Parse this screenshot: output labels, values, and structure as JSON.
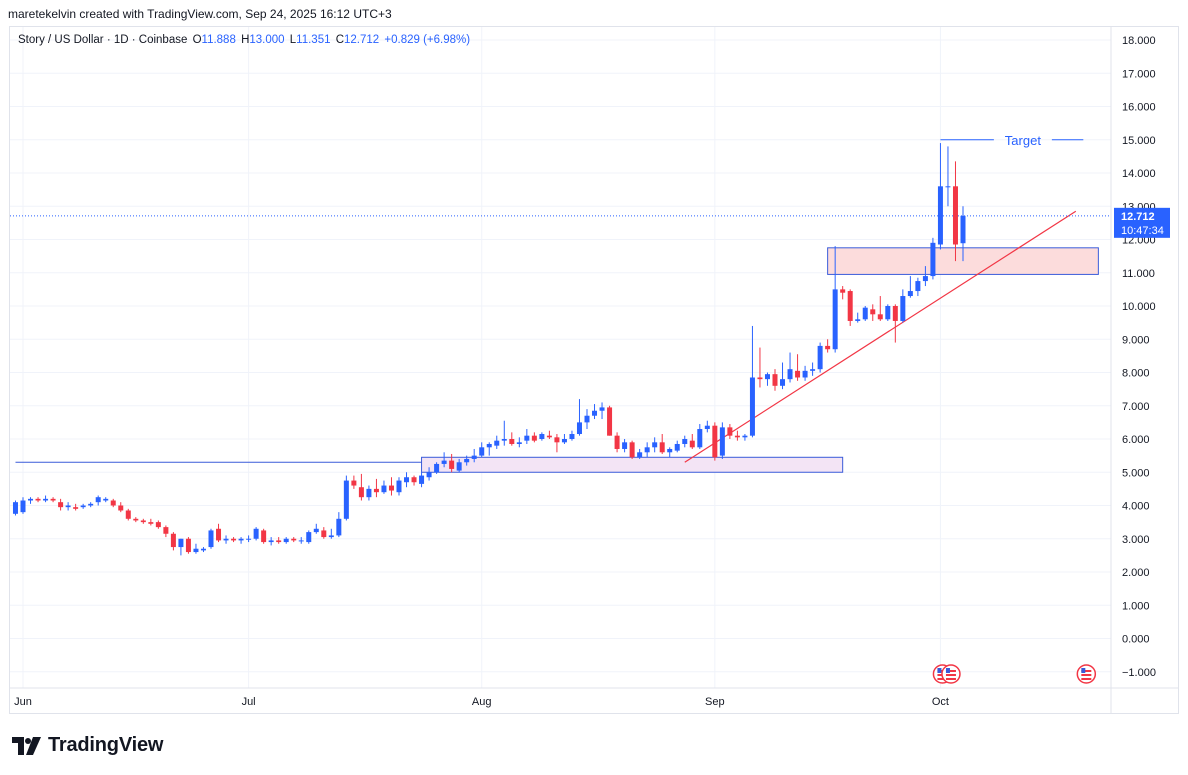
{
  "credit": "maretekelvin created with TradingView.com, Sep 24, 2025 16:12 UTC+3",
  "legend": {
    "symbol": "Story / US Dollar · 1D · Coinbase",
    "o_label": "O",
    "o": "11.888",
    "h_label": "H",
    "h": "13.000",
    "l_label": "L",
    "l": "11.351",
    "c_label": "C",
    "c": "12.712",
    "change": "+0.829 (+6.98%)"
  },
  "price_tag": {
    "price": "12.712",
    "countdown": "10:47:34"
  },
  "brand": "TradingView",
  "colors": {
    "up": "#2962ff",
    "down": "#f23645",
    "zone_fill": "#fcdcdc",
    "zone_border": "#3a5bd9",
    "support_fill": "#f3e4f5",
    "trendline": "#f23645",
    "target": "#2962ff"
  },
  "chart_data": {
    "type": "candlestick",
    "title": "Story / US Dollar · 1D · Coinbase",
    "x_ticks": [
      "Jun",
      "Jul",
      "Aug",
      "Sep",
      "Oct"
    ],
    "x_tick_dates": [
      "2025-06-01",
      "2025-07-01",
      "2025-08-01",
      "2025-09-01",
      "2025-10-01"
    ],
    "x_range": [
      "2025-05-31",
      "2025-10-22"
    ],
    "y_ticks": [
      "18.000",
      "17.000",
      "16.000",
      "15.000",
      "14.000",
      "13.000",
      "12.000",
      "11.000",
      "10.000",
      "9.000",
      "8.000",
      "7.000",
      "6.000",
      "5.000",
      "4.000",
      "3.000",
      "2.000",
      "1.000",
      "0.000",
      "−1.000"
    ],
    "ylim": [
      -1.5,
      18.5
    ],
    "last_price": 12.712,
    "candles": [
      {
        "date": "2025-05-31",
        "o": 3.75,
        "h": 4.15,
        "l": 3.7,
        "c": 4.1
      },
      {
        "date": "2025-06-01",
        "o": 3.8,
        "h": 4.25,
        "l": 3.75,
        "c": 4.15
      },
      {
        "date": "2025-06-02",
        "o": 4.15,
        "h": 4.25,
        "l": 4.05,
        "c": 4.2
      },
      {
        "date": "2025-06-03",
        "o": 4.2,
        "h": 4.25,
        "l": 4.1,
        "c": 4.15
      },
      {
        "date": "2025-06-04",
        "o": 4.15,
        "h": 4.3,
        "l": 4.1,
        "c": 4.2
      },
      {
        "date": "2025-06-05",
        "o": 4.2,
        "h": 4.25,
        "l": 4.1,
        "c": 4.15
      },
      {
        "date": "2025-06-06",
        "o": 4.1,
        "h": 4.2,
        "l": 3.85,
        "c": 3.95
      },
      {
        "date": "2025-06-07",
        "o": 3.95,
        "h": 4.1,
        "l": 3.85,
        "c": 4.0
      },
      {
        "date": "2025-06-08",
        "o": 3.95,
        "h": 4.05,
        "l": 3.85,
        "c": 3.9
      },
      {
        "date": "2025-06-09",
        "o": 3.95,
        "h": 4.05,
        "l": 3.9,
        "c": 4.0
      },
      {
        "date": "2025-06-10",
        "o": 4.0,
        "h": 4.1,
        "l": 3.95,
        "c": 4.05
      },
      {
        "date": "2025-06-11",
        "o": 4.1,
        "h": 4.3,
        "l": 4.0,
        "c": 4.25
      },
      {
        "date": "2025-06-12",
        "o": 4.15,
        "h": 4.25,
        "l": 4.1,
        "c": 4.2
      },
      {
        "date": "2025-06-13",
        "o": 4.15,
        "h": 4.2,
        "l": 3.95,
        "c": 4.0
      },
      {
        "date": "2025-06-14",
        "o": 4.0,
        "h": 4.1,
        "l": 3.8,
        "c": 3.85
      },
      {
        "date": "2025-06-15",
        "o": 3.85,
        "h": 3.9,
        "l": 3.55,
        "c": 3.6
      },
      {
        "date": "2025-06-16",
        "o": 3.6,
        "h": 3.65,
        "l": 3.5,
        "c": 3.55
      },
      {
        "date": "2025-06-17",
        "o": 3.55,
        "h": 3.6,
        "l": 3.45,
        "c": 3.5
      },
      {
        "date": "2025-06-18",
        "o": 3.5,
        "h": 3.6,
        "l": 3.4,
        "c": 3.45
      },
      {
        "date": "2025-06-19",
        "o": 3.5,
        "h": 3.55,
        "l": 3.3,
        "c": 3.35
      },
      {
        "date": "2025-06-20",
        "o": 3.35,
        "h": 3.4,
        "l": 3.05,
        "c": 3.15
      },
      {
        "date": "2025-06-21",
        "o": 3.15,
        "h": 3.2,
        "l": 2.65,
        "c": 2.75
      },
      {
        "date": "2025-06-22",
        "o": 2.75,
        "h": 3.0,
        "l": 2.5,
        "c": 3.0
      },
      {
        "date": "2025-06-23",
        "o": 3.0,
        "h": 3.05,
        "l": 2.55,
        "c": 2.6
      },
      {
        "date": "2025-06-24",
        "o": 2.6,
        "h": 2.85,
        "l": 2.55,
        "c": 2.7
      },
      {
        "date": "2025-06-25",
        "o": 2.65,
        "h": 2.75,
        "l": 2.6,
        "c": 2.7
      },
      {
        "date": "2025-06-26",
        "o": 2.75,
        "h": 3.3,
        "l": 2.7,
        "c": 3.25
      },
      {
        "date": "2025-06-27",
        "o": 3.3,
        "h": 3.45,
        "l": 2.9,
        "c": 2.95
      },
      {
        "date": "2025-06-28",
        "o": 2.95,
        "h": 3.1,
        "l": 2.85,
        "c": 3.0
      },
      {
        "date": "2025-06-29",
        "o": 3.0,
        "h": 3.05,
        "l": 2.9,
        "c": 2.95
      },
      {
        "date": "2025-06-30",
        "o": 2.95,
        "h": 3.05,
        "l": 2.85,
        "c": 3.0
      },
      {
        "date": "2025-07-01",
        "o": 3.0,
        "h": 3.1,
        "l": 2.9,
        "c": 3.0
      },
      {
        "date": "2025-07-02",
        "o": 3.0,
        "h": 3.35,
        "l": 2.95,
        "c": 3.3
      },
      {
        "date": "2025-07-03",
        "o": 3.25,
        "h": 3.3,
        "l": 2.85,
        "c": 2.9
      },
      {
        "date": "2025-07-04",
        "o": 2.9,
        "h": 3.05,
        "l": 2.8,
        "c": 2.95
      },
      {
        "date": "2025-07-05",
        "o": 2.95,
        "h": 3.05,
        "l": 2.85,
        "c": 2.9
      },
      {
        "date": "2025-07-06",
        "o": 2.9,
        "h": 3.05,
        "l": 2.85,
        "c": 3.0
      },
      {
        "date": "2025-07-07",
        "o": 3.0,
        "h": 3.05,
        "l": 2.9,
        "c": 2.95
      },
      {
        "date": "2025-07-08",
        "o": 2.95,
        "h": 3.05,
        "l": 2.85,
        "c": 2.95
      },
      {
        "date": "2025-07-09",
        "o": 2.9,
        "h": 3.25,
        "l": 2.85,
        "c": 3.2
      },
      {
        "date": "2025-07-10",
        "o": 3.2,
        "h": 3.45,
        "l": 3.15,
        "c": 3.3
      },
      {
        "date": "2025-07-11",
        "o": 3.25,
        "h": 3.35,
        "l": 3.0,
        "c": 3.05
      },
      {
        "date": "2025-07-12",
        "o": 3.05,
        "h": 3.3,
        "l": 3.0,
        "c": 3.1
      },
      {
        "date": "2025-07-13",
        "o": 3.1,
        "h": 3.8,
        "l": 3.05,
        "c": 3.6
      },
      {
        "date": "2025-07-14",
        "o": 3.6,
        "h": 4.9,
        "l": 3.55,
        "c": 4.75
      },
      {
        "date": "2025-07-15",
        "o": 4.75,
        "h": 4.9,
        "l": 4.5,
        "c": 4.6
      },
      {
        "date": "2025-07-16",
        "o": 4.55,
        "h": 4.95,
        "l": 4.15,
        "c": 4.25
      },
      {
        "date": "2025-07-17",
        "o": 4.25,
        "h": 4.6,
        "l": 4.15,
        "c": 4.5
      },
      {
        "date": "2025-07-18",
        "o": 4.5,
        "h": 4.8,
        "l": 4.25,
        "c": 4.4
      },
      {
        "date": "2025-07-19",
        "o": 4.4,
        "h": 4.75,
        "l": 4.35,
        "c": 4.6
      },
      {
        "date": "2025-07-20",
        "o": 4.6,
        "h": 4.85,
        "l": 4.3,
        "c": 4.45
      },
      {
        "date": "2025-07-21",
        "o": 4.4,
        "h": 4.85,
        "l": 4.3,
        "c": 4.75
      },
      {
        "date": "2025-07-22",
        "o": 4.7,
        "h": 5.0,
        "l": 4.55,
        "c": 4.85
      },
      {
        "date": "2025-07-23",
        "o": 4.85,
        "h": 4.9,
        "l": 4.6,
        "c": 4.7
      },
      {
        "date": "2025-07-24",
        "o": 4.65,
        "h": 5.0,
        "l": 4.55,
        "c": 4.9
      },
      {
        "date": "2025-07-25",
        "o": 4.85,
        "h": 5.15,
        "l": 4.75,
        "c": 5.0
      },
      {
        "date": "2025-07-26",
        "o": 5.0,
        "h": 5.3,
        "l": 4.95,
        "c": 5.25
      },
      {
        "date": "2025-07-27",
        "o": 5.25,
        "h": 5.6,
        "l": 5.15,
        "c": 5.35
      },
      {
        "date": "2025-07-28",
        "o": 5.35,
        "h": 5.55,
        "l": 5.0,
        "c": 5.1
      },
      {
        "date": "2025-07-29",
        "o": 5.05,
        "h": 5.4,
        "l": 5.0,
        "c": 5.3
      },
      {
        "date": "2025-07-30",
        "o": 5.3,
        "h": 5.5,
        "l": 5.2,
        "c": 5.4
      },
      {
        "date": "2025-07-31",
        "o": 5.4,
        "h": 5.7,
        "l": 5.3,
        "c": 5.5
      },
      {
        "date": "2025-08-01",
        "o": 5.5,
        "h": 5.9,
        "l": 5.45,
        "c": 5.75
      },
      {
        "date": "2025-08-02",
        "o": 5.75,
        "h": 5.9,
        "l": 5.5,
        "c": 5.85
      },
      {
        "date": "2025-08-03",
        "o": 5.8,
        "h": 6.1,
        "l": 5.7,
        "c": 5.95
      },
      {
        "date": "2025-08-04",
        "o": 5.95,
        "h": 6.55,
        "l": 5.8,
        "c": 6.0
      },
      {
        "date": "2025-08-05",
        "o": 6.0,
        "h": 6.2,
        "l": 5.8,
        "c": 5.85
      },
      {
        "date": "2025-08-06",
        "o": 5.85,
        "h": 6.05,
        "l": 5.75,
        "c": 5.9
      },
      {
        "date": "2025-08-07",
        "o": 5.95,
        "h": 6.3,
        "l": 5.85,
        "c": 6.1
      },
      {
        "date": "2025-08-08",
        "o": 6.1,
        "h": 6.2,
        "l": 5.9,
        "c": 5.95
      },
      {
        "date": "2025-08-09",
        "o": 6.0,
        "h": 6.2,
        "l": 5.95,
        "c": 6.15
      },
      {
        "date": "2025-08-10",
        "o": 6.1,
        "h": 6.25,
        "l": 6.0,
        "c": 6.05
      },
      {
        "date": "2025-08-11",
        "o": 6.05,
        "h": 6.15,
        "l": 5.6,
        "c": 5.9
      },
      {
        "date": "2025-08-12",
        "o": 5.9,
        "h": 6.15,
        "l": 5.85,
        "c": 6.0
      },
      {
        "date": "2025-08-13",
        "o": 6.0,
        "h": 6.25,
        "l": 5.95,
        "c": 6.15
      },
      {
        "date": "2025-08-14",
        "o": 6.15,
        "h": 7.2,
        "l": 6.1,
        "c": 6.5
      },
      {
        "date": "2025-08-15",
        "o": 6.5,
        "h": 6.9,
        "l": 6.3,
        "c": 6.7
      },
      {
        "date": "2025-08-16",
        "o": 6.7,
        "h": 7.05,
        "l": 6.6,
        "c": 6.85
      },
      {
        "date": "2025-08-17",
        "o": 6.85,
        "h": 7.1,
        "l": 6.6,
        "c": 6.95
      },
      {
        "date": "2025-08-18",
        "o": 6.95,
        "h": 7.0,
        "l": 6.1,
        "c": 6.1
      },
      {
        "date": "2025-08-19",
        "o": 6.1,
        "h": 6.2,
        "l": 5.6,
        "c": 5.7
      },
      {
        "date": "2025-08-20",
        "o": 5.7,
        "h": 6.0,
        "l": 5.6,
        "c": 5.9
      },
      {
        "date": "2025-08-21",
        "o": 5.9,
        "h": 5.95,
        "l": 5.4,
        "c": 5.45
      },
      {
        "date": "2025-08-22",
        "o": 5.45,
        "h": 5.7,
        "l": 5.4,
        "c": 5.6
      },
      {
        "date": "2025-08-23",
        "o": 5.6,
        "h": 5.9,
        "l": 5.45,
        "c": 5.75
      },
      {
        "date": "2025-08-24",
        "o": 5.75,
        "h": 6.05,
        "l": 5.6,
        "c": 5.9
      },
      {
        "date": "2025-08-25",
        "o": 5.9,
        "h": 6.15,
        "l": 5.55,
        "c": 5.6
      },
      {
        "date": "2025-08-26",
        "o": 5.6,
        "h": 5.75,
        "l": 5.45,
        "c": 5.7
      },
      {
        "date": "2025-08-27",
        "o": 5.65,
        "h": 5.95,
        "l": 5.6,
        "c": 5.85
      },
      {
        "date": "2025-08-28",
        "o": 5.85,
        "h": 6.1,
        "l": 5.75,
        "c": 6.0
      },
      {
        "date": "2025-08-29",
        "o": 5.95,
        "h": 6.15,
        "l": 5.7,
        "c": 5.75
      },
      {
        "date": "2025-08-30",
        "o": 5.75,
        "h": 6.45,
        "l": 5.7,
        "c": 6.3
      },
      {
        "date": "2025-08-31",
        "o": 6.3,
        "h": 6.55,
        "l": 6.2,
        "c": 6.4
      },
      {
        "date": "2025-09-01",
        "o": 6.4,
        "h": 6.5,
        "l": 5.35,
        "c": 5.45
      },
      {
        "date": "2025-09-02",
        "o": 5.5,
        "h": 6.5,
        "l": 5.4,
        "c": 6.35
      },
      {
        "date": "2025-09-03",
        "o": 6.35,
        "h": 6.45,
        "l": 6.0,
        "c": 6.1
      },
      {
        "date": "2025-09-04",
        "o": 6.1,
        "h": 6.25,
        "l": 5.95,
        "c": 6.05
      },
      {
        "date": "2025-09-05",
        "o": 6.05,
        "h": 6.15,
        "l": 5.95,
        "c": 6.1
      },
      {
        "date": "2025-09-06",
        "o": 6.1,
        "h": 9.4,
        "l": 6.05,
        "c": 7.85
      },
      {
        "date": "2025-09-07",
        "o": 7.85,
        "h": 8.75,
        "l": 7.55,
        "c": 7.8
      },
      {
        "date": "2025-09-08",
        "o": 7.8,
        "h": 8.0,
        "l": 7.6,
        "c": 7.95
      },
      {
        "date": "2025-09-09",
        "o": 7.95,
        "h": 8.1,
        "l": 7.45,
        "c": 7.6
      },
      {
        "date": "2025-09-10",
        "o": 7.6,
        "h": 8.3,
        "l": 7.5,
        "c": 7.8
      },
      {
        "date": "2025-09-11",
        "o": 7.8,
        "h": 8.6,
        "l": 7.7,
        "c": 8.1
      },
      {
        "date": "2025-09-12",
        "o": 8.05,
        "h": 8.55,
        "l": 7.75,
        "c": 7.85
      },
      {
        "date": "2025-09-13",
        "o": 7.85,
        "h": 8.2,
        "l": 7.75,
        "c": 8.05
      },
      {
        "date": "2025-09-14",
        "o": 8.05,
        "h": 8.3,
        "l": 7.9,
        "c": 8.1
      },
      {
        "date": "2025-09-15",
        "o": 8.1,
        "h": 8.9,
        "l": 8.0,
        "c": 8.8
      },
      {
        "date": "2025-09-16",
        "o": 8.8,
        "h": 9.0,
        "l": 8.6,
        "c": 8.7
      },
      {
        "date": "2025-09-17",
        "o": 8.7,
        "h": 11.8,
        "l": 8.6,
        "c": 10.5
      },
      {
        "date": "2025-09-18",
        "o": 10.5,
        "h": 10.6,
        "l": 10.2,
        "c": 10.4
      },
      {
        "date": "2025-09-19",
        "o": 10.45,
        "h": 10.5,
        "l": 9.4,
        "c": 9.55
      },
      {
        "date": "2025-09-20",
        "o": 9.55,
        "h": 9.8,
        "l": 9.5,
        "c": 9.6
      },
      {
        "date": "2025-09-21",
        "o": 9.6,
        "h": 10.0,
        "l": 9.55,
        "c": 9.95
      },
      {
        "date": "2025-09-22",
        "o": 9.9,
        "h": 10.05,
        "l": 9.55,
        "c": 9.75
      },
      {
        "date": "2025-09-23",
        "o": 9.75,
        "h": 10.3,
        "l": 9.55,
        "c": 9.6
      },
      {
        "date": "2025-09-24",
        "o": 9.6,
        "h": 10.05,
        "l": 9.55,
        "c": 10.0
      },
      {
        "date": "2025-09-25",
        "o": 10.0,
        "h": 10.05,
        "l": 8.9,
        "c": 9.55
      },
      {
        "date": "2025-09-26",
        "o": 9.55,
        "h": 10.5,
        "l": 9.5,
        "c": 10.3
      },
      {
        "date": "2025-09-27",
        "o": 10.3,
        "h": 10.9,
        "l": 10.25,
        "c": 10.45
      },
      {
        "date": "2025-09-28",
        "o": 10.45,
        "h": 10.85,
        "l": 10.3,
        "c": 10.75
      },
      {
        "date": "2025-09-29",
        "o": 10.75,
        "h": 11.2,
        "l": 10.6,
        "c": 10.9
      },
      {
        "date": "2025-09-30",
        "o": 10.9,
        "h": 12.05,
        "l": 10.8,
        "c": 11.9
      },
      {
        "date": "2025-10-01",
        "o": 11.85,
        "h": 14.9,
        "l": 11.7,
        "c": 13.6
      },
      {
        "date": "2025-10-02",
        "o": 13.6,
        "h": 14.8,
        "l": 13.0,
        "c": 13.6
      },
      {
        "date": "2025-10-03",
        "o": 13.6,
        "h": 14.35,
        "l": 11.35,
        "c": 11.85
      },
      {
        "date": "2025-10-04",
        "o": 11.888,
        "h": 13.0,
        "l": 11.351,
        "c": 12.712
      }
    ],
    "annotations": [
      {
        "type": "target_line",
        "label": "Target",
        "price": 15.0,
        "from": "2025-10-01",
        "to": "2025-10-20"
      },
      {
        "type": "resistance_zone",
        "from": "2025-09-16",
        "to": "2025-10-22",
        "low": 10.95,
        "high": 11.75
      },
      {
        "type": "support_zone",
        "from": "2025-07-24",
        "to": "2025-09-18",
        "low": 5.0,
        "high": 5.45
      },
      {
        "type": "horizontal_line",
        "from": "2025-05-31",
        "to": "2025-07-24",
        "price": 5.3
      },
      {
        "type": "trendline",
        "from_date": "2025-08-28",
        "from_price": 5.3,
        "to_date": "2025-10-19",
        "to_price": 12.85
      }
    ]
  }
}
